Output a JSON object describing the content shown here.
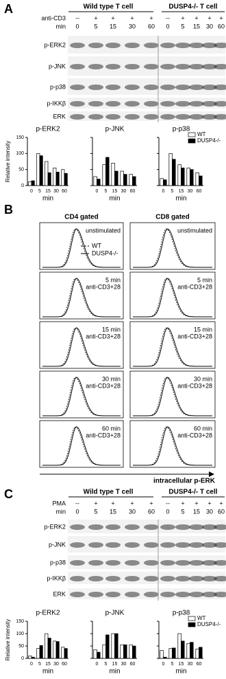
{
  "panels": [
    {
      "label": "A",
      "groups": [
        "Wild type T cell",
        "DUSP4-/- T cell"
      ],
      "treatment": "anti-CD3",
      "signs": [
        "--",
        "+",
        "+",
        "+",
        "+",
        "--",
        "+",
        "+",
        "+",
        "+"
      ],
      "time_label": "min",
      "times": [
        "0",
        "5",
        "15",
        "30",
        "60",
        "0",
        "5",
        "15",
        "30",
        "60"
      ],
      "blots": [
        "p-ERK2",
        "p-JNK",
        "p-p38",
        "p-IKKβ",
        "ERK"
      ]
    },
    {
      "label": "C",
      "groups": [
        "Wild type T cell",
        "DUSP4-/- T cell"
      ],
      "treatment": "PMA",
      "signs": [
        "--",
        "+",
        "+",
        "+",
        "+",
        "--",
        "+",
        "+",
        "+",
        "+"
      ],
      "time_label": "min",
      "times": [
        "0",
        "5",
        "15",
        "30",
        "60",
        "0",
        "5",
        "15",
        "30",
        "60"
      ],
      "blots": [
        "p-ERK2",
        "p-JNK",
        "p-p38",
        "p-IKKβ",
        "ERK"
      ]
    }
  ],
  "chart_data": [
    {
      "type": "bar",
      "title": "p-ERK2",
      "ylabel": "Relative intensity",
      "xlabel": "min",
      "categories": [
        "0",
        "5",
        "15",
        "30",
        "60"
      ],
      "ylim": [
        0,
        150
      ],
      "yticks": [
        0,
        50,
        100,
        150
      ],
      "series": [
        {
          "color": "#ffffff",
          "values": [
            12,
            100,
            75,
            55,
            50
          ]
        },
        {
          "color": "#000000",
          "values": [
            15,
            93,
            40,
            42,
            38
          ]
        }
      ]
    },
    {
      "type": "bar",
      "title": "p-JNK",
      "xlabel": "min",
      "categories": [
        "0",
        "5",
        "15",
        "30",
        "60"
      ],
      "ylim": [
        0,
        150
      ],
      "yticks": [
        0,
        50,
        100,
        150
      ],
      "series": [
        {
          "color": "#ffffff",
          "values": [
            28,
            65,
            70,
            45,
            35
          ]
        },
        {
          "color": "#000000",
          "values": [
            20,
            88,
            45,
            35,
            28
          ]
        }
      ]
    },
    {
      "type": "bar",
      "title": "p-p38",
      "xlabel": "min",
      "categories": [
        "0",
        "5",
        "15",
        "30",
        "60"
      ],
      "ylim": [
        0,
        150
      ],
      "yticks": [
        0,
        50,
        100,
        150
      ],
      "legend": "top-right",
      "series": [
        {
          "name": "WT",
          "color": "#ffffff",
          "values": [
            22,
            100,
            65,
            55,
            40
          ]
        },
        {
          "name": "DUSP4-/-",
          "color": "#000000",
          "values": [
            18,
            82,
            55,
            50,
            30
          ]
        }
      ]
    },
    {
      "type": "bar",
      "title": "p-ERK2",
      "ylabel": "Relative intensity",
      "xlabel": "min",
      "categories": [
        "0",
        "5",
        "15",
        "30",
        "60"
      ],
      "ylim": [
        0,
        150
      ],
      "yticks": [
        0,
        50,
        100,
        150
      ],
      "series": [
        {
          "color": "#ffffff",
          "values": [
            10,
            40,
            100,
            70,
            45
          ]
        },
        {
          "color": "#000000",
          "values": [
            5,
            52,
            82,
            68,
            40
          ]
        }
      ]
    },
    {
      "type": "bar",
      "title": "p-JNK",
      "xlabel": "min",
      "categories": [
        "0",
        "5",
        "15",
        "30",
        "60"
      ],
      "ylim": [
        0,
        150
      ],
      "yticks": [
        0,
        50,
        100,
        150
      ],
      "series": [
        {
          "color": "#ffffff",
          "values": [
            35,
            55,
            100,
            55,
            55
          ]
        },
        {
          "color": "#000000",
          "values": [
            25,
            95,
            100,
            55,
            50
          ]
        }
      ]
    },
    {
      "type": "bar",
      "title": "p-p38",
      "xlabel": "min",
      "categories": [
        "0",
        "5",
        "15",
        "30",
        "60"
      ],
      "ylim": [
        0,
        150
      ],
      "yticks": [
        0,
        50,
        100,
        150
      ],
      "legend": "top-right",
      "series": [
        {
          "name": "WT",
          "color": "#ffffff",
          "values": [
            32,
            40,
            100,
            60,
            38
          ]
        },
        {
          "name": "DUSP4-/-",
          "color": "#000000",
          "values": [
            5,
            42,
            70,
            65,
            45
          ]
        }
      ]
    }
  ],
  "flow": {
    "label": "B",
    "columns": [
      "CD4 gated",
      "CD8 gated"
    ],
    "legend": [
      "WT",
      "DUSP4-/-"
    ],
    "rows": [
      [
        "unstimulated"
      ],
      [
        "5 min",
        "anti-CD3+28"
      ],
      [
        "15 min",
        "anti-CD3+28"
      ],
      [
        "30 min",
        "anti-CD3+28"
      ],
      [
        "60 min",
        "anti-CD3+28"
      ]
    ],
    "xlabel": "intracellular p-ERK"
  }
}
